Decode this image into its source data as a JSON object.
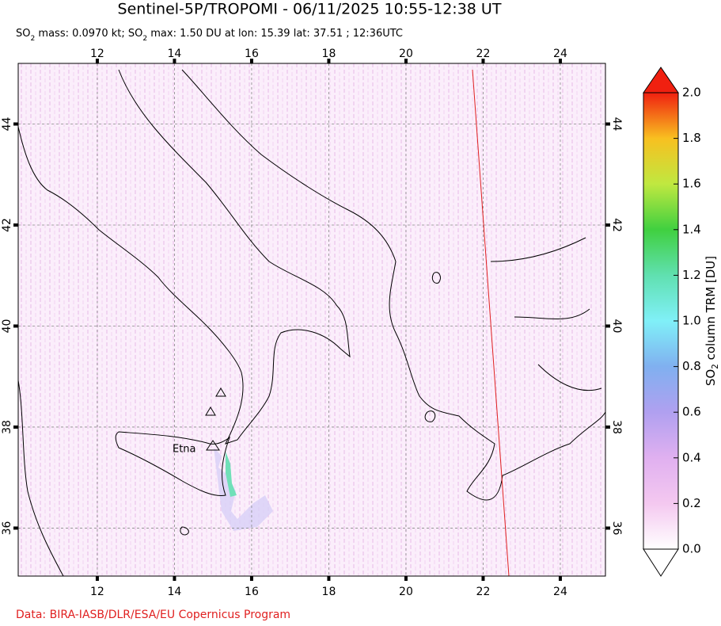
{
  "header": {
    "title": "Sentinel-5P/TROPOMI - 06/11/2025 10:55-12:38 UT",
    "subtitle": [
      "SO",
      "2",
      " mass: 0.0970 kt; SO",
      "2",
      " max: 1.50 DU at lon: 15.39 lat: 37.51 ; 12:36UTC"
    ]
  },
  "map": {
    "xlim": [
      9.95,
      25.17
    ],
    "ylim": [
      35.05,
      45.2
    ],
    "xticks": [
      12,
      14,
      16,
      18,
      20,
      22,
      24
    ],
    "yticks": [
      36,
      38,
      40,
      42,
      44
    ],
    "annotations": [
      "Etna"
    ]
  },
  "colorbar": {
    "label": [
      "SO",
      "2",
      " column TRM [DU]"
    ],
    "lim": [
      0,
      2
    ],
    "ticks": [
      {
        "value": 0,
        "label": "0.0"
      },
      {
        "value": 0.2,
        "label": "0.2"
      },
      {
        "value": 0.4,
        "label": "0.4"
      },
      {
        "value": 0.6,
        "label": "0.6"
      },
      {
        "value": 0.8,
        "label": "0.8"
      },
      {
        "value": 1.0,
        "label": "1.0"
      },
      {
        "value": 1.2,
        "label": "1.2"
      },
      {
        "value": 1.4,
        "label": "1.4"
      },
      {
        "value": 1.6,
        "label": "1.6"
      },
      {
        "value": 1.8,
        "label": "1.8"
      },
      {
        "value": 2.0,
        "label": "2.0"
      }
    ]
  },
  "footer": {
    "credit": "Data: BIRA-IASB/DLR/ESA/EU Copernicus Program"
  }
}
